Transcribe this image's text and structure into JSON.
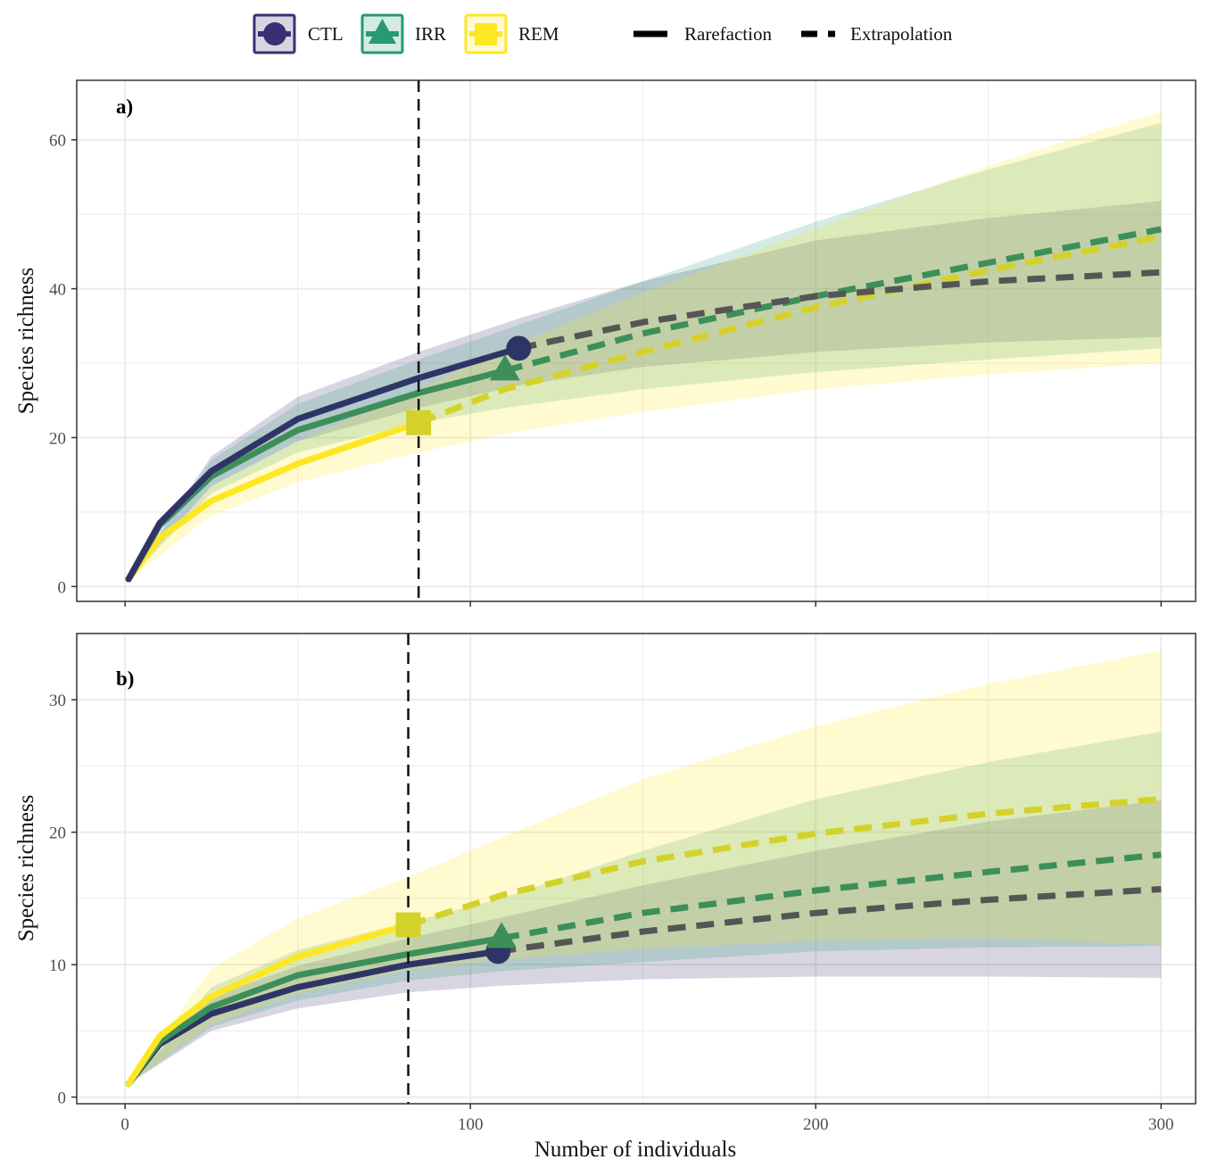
{
  "colors": {
    "CTL": "#3b2f73",
    "IRR": "#259a74",
    "REM": "#fde725",
    "CTL_line": "#2e3566",
    "CTL_dash": "#555555",
    "IRR_line": "#3d8f5a",
    "REM_dash": "#d4d22a",
    "ref_line": "#111111"
  },
  "legend": {
    "groups": [
      {
        "key": "CTL",
        "label": "CTL",
        "shape": "circle"
      },
      {
        "key": "IRR",
        "label": "IRR",
        "shape": "triangle"
      },
      {
        "key": "REM",
        "label": "REM",
        "shape": "square"
      }
    ],
    "methods": [
      {
        "key": "rarefaction",
        "label": "Rarefaction"
      },
      {
        "key": "extrapolation",
        "label": "Extrapolation"
      }
    ],
    "position": "top"
  },
  "chart_data": [
    {
      "type": "line",
      "panel_label": "a)",
      "xlabel": "",
      "ylabel": "Species richness",
      "xlim": [
        -14,
        310
      ],
      "ylim": [
        -2,
        68
      ],
      "x_ticks": [
        0,
        100,
        200,
        300
      ],
      "y_ticks": [
        0,
        20,
        40,
        60
      ],
      "grid": true,
      "reference_x": 85,
      "series": [
        {
          "name": "CTL",
          "observed_n": 114,
          "observed_s": 32,
          "rarefaction": [
            [
              1,
              1
            ],
            [
              10,
              8.5
            ],
            [
              25,
              15.5
            ],
            [
              50,
              22.5
            ],
            [
              85,
              28
            ],
            [
              114,
              32
            ]
          ],
          "extrapolation": [
            [
              114,
              32
            ],
            [
              150,
              35.5
            ],
            [
              200,
              39
            ],
            [
              250,
              41
            ],
            [
              300,
              42.2
            ]
          ],
          "ci_lower": [
            [
              1,
              1
            ],
            [
              25,
              13.5
            ],
            [
              50,
              19.5
            ],
            [
              85,
              24
            ],
            [
              114,
              27
            ],
            [
              150,
              29.5
            ],
            [
              200,
              31.5
            ],
            [
              250,
              32.8
            ],
            [
              300,
              33.5
            ]
          ],
          "ci_upper": [
            [
              1,
              1
            ],
            [
              25,
              17.5
            ],
            [
              50,
              25.5
            ],
            [
              85,
              31.5
            ],
            [
              114,
              36
            ],
            [
              150,
              41
            ],
            [
              200,
              46.5
            ],
            [
              250,
              49.5
            ],
            [
              300,
              51.8
            ]
          ]
        },
        {
          "name": "IRR",
          "observed_n": 110,
          "observed_s": 29,
          "rarefaction": [
            [
              1,
              1
            ],
            [
              10,
              8.2
            ],
            [
              25,
              14.8
            ],
            [
              50,
              21
            ],
            [
              85,
              26
            ],
            [
              110,
              29
            ]
          ],
          "extrapolation": [
            [
              110,
              29
            ],
            [
              150,
              34
            ],
            [
              200,
              39
            ],
            [
              250,
              43.5
            ],
            [
              300,
              48
            ]
          ],
          "ci_lower": [
            [
              1,
              1
            ],
            [
              25,
              12.5
            ],
            [
              50,
              18
            ],
            [
              85,
              22
            ],
            [
              110,
              24
            ],
            [
              150,
              26.5
            ],
            [
              200,
              28.8
            ],
            [
              250,
              30.5
            ],
            [
              300,
              32
            ]
          ],
          "ci_upper": [
            [
              1,
              1
            ],
            [
              25,
              17
            ],
            [
              50,
              24.5
            ],
            [
              85,
              30.5
            ],
            [
              110,
              34.5
            ],
            [
              150,
              41
            ],
            [
              200,
              49
            ],
            [
              250,
              56
            ],
            [
              300,
              62.3
            ]
          ]
        },
        {
          "name": "REM",
          "observed_n": 85,
          "observed_s": 22,
          "rarefaction": [
            [
              1,
              1
            ],
            [
              10,
              6.5
            ],
            [
              25,
              11.5
            ],
            [
              50,
              16.5
            ],
            [
              85,
              22
            ]
          ],
          "extrapolation": [
            [
              85,
              22
            ],
            [
              110,
              26.5
            ],
            [
              150,
              31.5
            ],
            [
              200,
              37.5
            ],
            [
              250,
              42.5
            ],
            [
              300,
              47
            ]
          ],
          "ci_lower": [
            [
              1,
              1
            ],
            [
              25,
              9.5
            ],
            [
              50,
              14
            ],
            [
              85,
              18
            ],
            [
              110,
              20.5
            ],
            [
              150,
              23.5
            ],
            [
              200,
              26.5
            ],
            [
              250,
              28.5
            ],
            [
              300,
              30
            ]
          ],
          "ci_upper": [
            [
              1,
              1
            ],
            [
              25,
              13.5
            ],
            [
              50,
              19.5
            ],
            [
              85,
              26.5
            ],
            [
              110,
              32
            ],
            [
              150,
              39.5
            ],
            [
              200,
              48
            ],
            [
              250,
              56.5
            ],
            [
              300,
              63.8
            ]
          ]
        }
      ]
    },
    {
      "type": "line",
      "panel_label": "b)",
      "xlabel": "Number of individuals",
      "ylabel": "Species richness",
      "xlim": [
        -14,
        310
      ],
      "ylim": [
        -0.5,
        35
      ],
      "x_ticks": [
        0,
        100,
        200,
        300
      ],
      "y_ticks": [
        0,
        10,
        20,
        30
      ],
      "grid": true,
      "reference_x": 82,
      "series": [
        {
          "name": "CTL",
          "observed_n": 108,
          "observed_s": 11,
          "rarefaction": [
            [
              1,
              1
            ],
            [
              10,
              4
            ],
            [
              25,
              6.3
            ],
            [
              50,
              8.3
            ],
            [
              82,
              10
            ],
            [
              108,
              11
            ]
          ],
          "extrapolation": [
            [
              108,
              11
            ],
            [
              150,
              12.5
            ],
            [
              200,
              13.9
            ],
            [
              250,
              14.9
            ],
            [
              300,
              15.7
            ]
          ],
          "ci_lower": [
            [
              1,
              1
            ],
            [
              25,
              5
            ],
            [
              50,
              6.7
            ],
            [
              82,
              7.9
            ],
            [
              108,
              8.4
            ],
            [
              150,
              8.9
            ],
            [
              200,
              9.1
            ],
            [
              250,
              9.1
            ],
            [
              300,
              9
            ]
          ],
          "ci_upper": [
            [
              1,
              1
            ],
            [
              25,
              7.6
            ],
            [
              50,
              9.9
            ],
            [
              82,
              12
            ],
            [
              108,
              13.5
            ],
            [
              150,
              16
            ],
            [
              200,
              18.6
            ],
            [
              250,
              20.8
            ],
            [
              300,
              22.4
            ]
          ]
        },
        {
          "name": "IRR",
          "observed_n": 109,
          "observed_s": 12,
          "rarefaction": [
            [
              1,
              1
            ],
            [
              10,
              4.2
            ],
            [
              25,
              6.8
            ],
            [
              50,
              9.2
            ],
            [
              82,
              10.8
            ],
            [
              109,
              12
            ]
          ],
          "extrapolation": [
            [
              109,
              12
            ],
            [
              150,
              13.9
            ],
            [
              200,
              15.6
            ],
            [
              250,
              17
            ],
            [
              300,
              18.3
            ]
          ],
          "ci_lower": [
            [
              1,
              1
            ],
            [
              25,
              5.3
            ],
            [
              50,
              7.3
            ],
            [
              82,
              8.8
            ],
            [
              109,
              9.5
            ],
            [
              150,
              10.2
            ],
            [
              200,
              11
            ],
            [
              250,
              11.3
            ],
            [
              300,
              11.4
            ]
          ],
          "ci_upper": [
            [
              1,
              1
            ],
            [
              25,
              8.3
            ],
            [
              50,
              11.1
            ],
            [
              82,
              13.2
            ],
            [
              109,
              15
            ],
            [
              150,
              18.6
            ],
            [
              200,
              22.5
            ],
            [
              250,
              25.3
            ],
            [
              300,
              27.6
            ]
          ]
        },
        {
          "name": "REM",
          "observed_n": 82,
          "observed_s": 13,
          "rarefaction": [
            [
              1,
              1
            ],
            [
              10,
              4.6
            ],
            [
              25,
              7.6
            ],
            [
              50,
              10.6
            ],
            [
              82,
              13
            ]
          ],
          "extrapolation": [
            [
              82,
              13
            ],
            [
              110,
              15.3
            ],
            [
              150,
              17.8
            ],
            [
              200,
              19.9
            ],
            [
              250,
              21.4
            ],
            [
              300,
              22.5
            ]
          ],
          "ci_lower": [
            [
              1,
              1
            ],
            [
              25,
              5.5
            ],
            [
              50,
              7.8
            ],
            [
              82,
              9.6
            ],
            [
              110,
              10.4
            ],
            [
              150,
              11.2
            ],
            [
              200,
              11.8
            ],
            [
              250,
              12
            ],
            [
              300,
              11.5
            ]
          ],
          "ci_upper": [
            [
              1,
              1
            ],
            [
              25,
              9.7
            ],
            [
              50,
              13.5
            ],
            [
              82,
              16.6
            ],
            [
              110,
              19.7
            ],
            [
              150,
              24
            ],
            [
              200,
              28
            ],
            [
              250,
              31.2
            ],
            [
              300,
              33.7
            ]
          ]
        }
      ]
    }
  ]
}
